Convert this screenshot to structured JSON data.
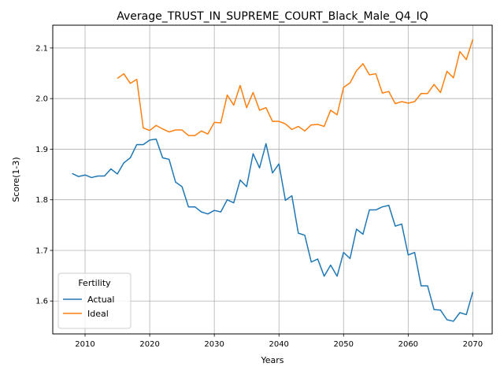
{
  "chart_data": {
    "type": "line",
    "title": "Average_TRUST_IN_SUPREME_COURT_Black_Male_Q4_IQ",
    "xlabel": "Years",
    "ylabel": "Score(1-3)",
    "xlim": [
      2005,
      2073
    ],
    "ylim": [
      1.535,
      2.145
    ],
    "xticks": [
      2010,
      2020,
      2030,
      2040,
      2050,
      2060,
      2070
    ],
    "yticks": [
      1.6,
      1.7,
      1.8,
      1.9,
      2.0,
      2.1
    ],
    "grid": true,
    "legend": {
      "title": "Fertility",
      "placement": "lower-left"
    },
    "series": [
      {
        "name": "Actual",
        "color": "#1f77b4",
        "x": [
          2008,
          2009,
          2010,
          2011,
          2012,
          2013,
          2014,
          2015,
          2016,
          2017,
          2018,
          2019,
          2020,
          2021,
          2022,
          2023,
          2024,
          2025,
          2026,
          2027,
          2028,
          2029,
          2030,
          2031,
          2032,
          2033,
          2034,
          2035,
          2036,
          2037,
          2038,
          2039,
          2040,
          2041,
          2042,
          2043,
          2044,
          2045,
          2046,
          2047,
          2048,
          2049,
          2050,
          2051,
          2052,
          2053,
          2054,
          2055,
          2056,
          2057,
          2058,
          2059,
          2060,
          2061,
          2062,
          2063,
          2064,
          2065,
          2066,
          2067,
          2068,
          2069,
          2070
        ],
        "y": [
          1.852,
          1.846,
          1.849,
          1.844,
          1.847,
          1.847,
          1.861,
          1.851,
          1.873,
          1.883,
          1.909,
          1.909,
          1.918,
          1.92,
          1.883,
          1.88,
          1.835,
          1.826,
          1.786,
          1.786,
          1.776,
          1.772,
          1.779,
          1.776,
          1.8,
          1.794,
          1.839,
          1.826,
          1.891,
          1.863,
          1.911,
          1.853,
          1.871,
          1.799,
          1.808,
          1.734,
          1.73,
          1.677,
          1.683,
          1.649,
          1.671,
          1.649,
          1.696,
          1.684,
          1.742,
          1.732,
          1.78,
          1.78,
          1.786,
          1.789,
          1.748,
          1.752,
          1.691,
          1.696,
          1.63,
          1.63,
          1.583,
          1.582,
          1.563,
          1.56,
          1.577,
          1.573,
          1.618
        ]
      },
      {
        "name": "Ideal",
        "color": "#ff7f0e",
        "x": [
          2015,
          2016,
          2017,
          2018,
          2019,
          2020,
          2021,
          2022,
          2023,
          2024,
          2025,
          2026,
          2027,
          2028,
          2029,
          2030,
          2031,
          2032,
          2033,
          2034,
          2035,
          2036,
          2037,
          2038,
          2039,
          2040,
          2041,
          2042,
          2043,
          2044,
          2045,
          2046,
          2047,
          2048,
          2049,
          2050,
          2051,
          2052,
          2053,
          2054,
          2055,
          2056,
          2057,
          2058,
          2059,
          2060,
          2061,
          2062,
          2063,
          2064,
          2065,
          2066,
          2067,
          2068,
          2069,
          2070
        ],
        "y": [
          2.04,
          2.049,
          2.03,
          2.038,
          1.942,
          1.937,
          1.947,
          1.94,
          1.934,
          1.938,
          1.938,
          1.927,
          1.927,
          1.936,
          1.93,
          1.953,
          1.952,
          2.007,
          1.987,
          2.026,
          1.982,
          2.012,
          1.977,
          1.982,
          1.955,
          1.955,
          1.95,
          1.939,
          1.945,
          1.936,
          1.948,
          1.949,
          1.945,
          1.977,
          1.968,
          2.022,
          2.031,
          2.055,
          2.069,
          2.047,
          2.049,
          2.011,
          2.014,
          1.99,
          1.994,
          1.991,
          1.994,
          2.01,
          2.01,
          2.028,
          2.012,
          2.054,
          2.041,
          2.093,
          2.077,
          2.117
        ]
      }
    ]
  }
}
